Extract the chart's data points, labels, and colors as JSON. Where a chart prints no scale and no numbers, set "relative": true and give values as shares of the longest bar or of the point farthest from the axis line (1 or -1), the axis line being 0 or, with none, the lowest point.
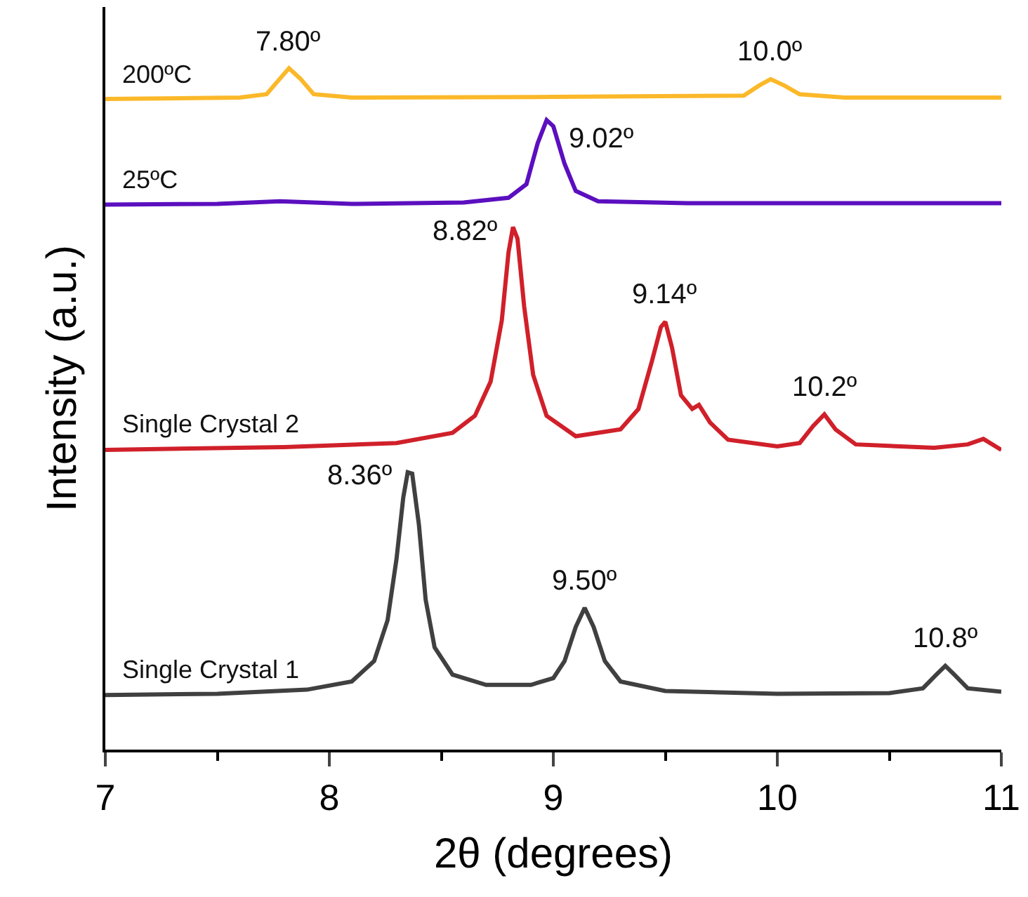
{
  "chart_data": {
    "type": "line",
    "relative": true,
    "xlabel": "2θ (degrees)",
    "ylabel": "Intensity (a.u.)",
    "xlim": [
      7,
      11
    ],
    "xticks": [
      7,
      8,
      9,
      10,
      11
    ],
    "legend": false,
    "marker": "none",
    "line_style": "solid",
    "series": [
      {
        "name": "200ºC",
        "color": "#fbb829",
        "x": [
          7.0,
          7.6,
          7.72,
          7.78,
          7.82,
          7.87,
          7.93,
          8.1,
          9.0,
          9.85,
          9.92,
          9.97,
          10.03,
          10.1,
          10.3,
          11.0
        ],
        "values": [
          0.955,
          0.957,
          0.962,
          0.985,
          1.0,
          0.985,
          0.962,
          0.957,
          0.958,
          0.96,
          0.975,
          0.984,
          0.975,
          0.962,
          0.957,
          0.957
        ]
      },
      {
        "name": "25ºC",
        "color": "#5b0fbf",
        "x": [
          7.0,
          7.5,
          7.78,
          8.1,
          8.6,
          8.8,
          8.88,
          8.93,
          8.97,
          9.0,
          9.05,
          9.1,
          9.2,
          9.6,
          11.0
        ],
        "values": [
          0.8,
          0.801,
          0.805,
          0.801,
          0.803,
          0.81,
          0.83,
          0.89,
          0.924,
          0.915,
          0.86,
          0.82,
          0.805,
          0.802,
          0.802
        ]
      },
      {
        "name": "Single Crystal 2",
        "color": "#d0202a",
        "x": [
          7.0,
          7.8,
          8.3,
          8.55,
          8.65,
          8.72,
          8.77,
          8.8,
          8.82,
          8.84,
          8.87,
          8.91,
          8.97,
          9.1,
          9.3,
          9.38,
          9.44,
          9.48,
          9.5,
          9.53,
          9.57,
          9.62,
          9.65,
          9.7,
          9.78,
          10.0,
          10.1,
          10.16,
          10.21,
          10.26,
          10.35,
          10.7,
          10.85,
          10.92,
          11.0
        ],
        "values": [
          0.44,
          0.444,
          0.45,
          0.465,
          0.49,
          0.54,
          0.63,
          0.73,
          0.767,
          0.75,
          0.65,
          0.55,
          0.49,
          0.46,
          0.47,
          0.5,
          0.57,
          0.62,
          0.628,
          0.59,
          0.52,
          0.5,
          0.506,
          0.48,
          0.455,
          0.445,
          0.45,
          0.475,
          0.492,
          0.47,
          0.448,
          0.443,
          0.448,
          0.456,
          0.44
        ]
      },
      {
        "name": "Single Crystal 1",
        "color": "#404040",
        "x": [
          7.0,
          7.5,
          7.9,
          8.1,
          8.2,
          8.26,
          8.3,
          8.33,
          8.35,
          8.37,
          8.4,
          8.43,
          8.47,
          8.55,
          8.7,
          8.9,
          9.0,
          9.05,
          9.1,
          9.14,
          9.18,
          9.23,
          9.3,
          9.5,
          10.0,
          10.5,
          10.65,
          10.71,
          10.75,
          10.79,
          10.85,
          11.0
        ],
        "values": [
          0.08,
          0.082,
          0.088,
          0.1,
          0.13,
          0.19,
          0.28,
          0.37,
          0.407,
          0.405,
          0.33,
          0.22,
          0.15,
          0.11,
          0.095,
          0.095,
          0.105,
          0.13,
          0.18,
          0.208,
          0.18,
          0.13,
          0.1,
          0.086,
          0.082,
          0.083,
          0.09,
          0.11,
          0.123,
          0.11,
          0.09,
          0.085
        ]
      }
    ],
    "annotations": [
      {
        "text": "7.80º",
        "x": 7.82,
        "y": 1.0
      },
      {
        "text": "10.0º",
        "x": 9.97,
        "y": 0.984
      },
      {
        "text": "9.02º",
        "x": 8.97,
        "y": 0.924
      },
      {
        "text": "8.82º",
        "x": 8.82,
        "y": 0.767
      },
      {
        "text": "9.14º",
        "x": 9.5,
        "y": 0.628
      },
      {
        "text": "10.2º",
        "x": 10.21,
        "y": 0.492
      },
      {
        "text": "8.36º",
        "x": 8.35,
        "y": 0.407
      },
      {
        "text": "9.50º",
        "x": 9.14,
        "y": 0.208
      },
      {
        "text": "10.8º",
        "x": 10.75,
        "y": 0.123
      }
    ]
  }
}
